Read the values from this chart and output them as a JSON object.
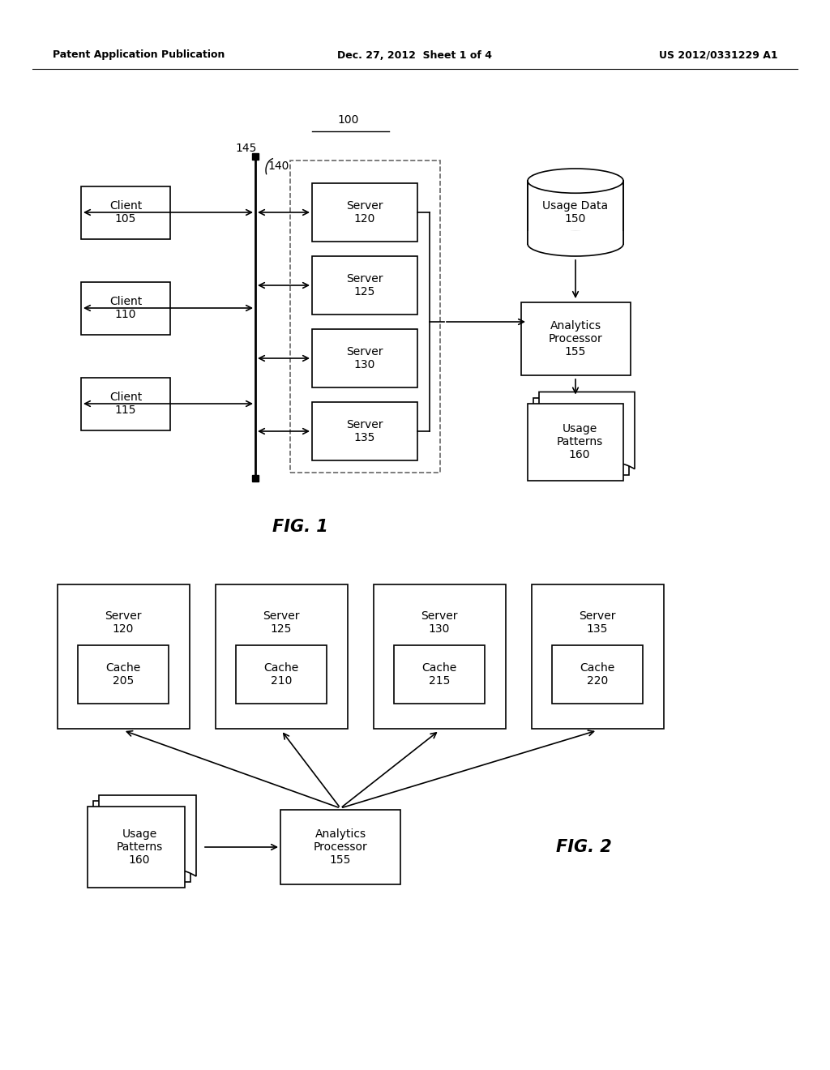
{
  "background_color": "#ffffff",
  "header_left": "Patent Application Publication",
  "header_center": "Dec. 27, 2012  Sheet 1 of 4",
  "header_right": "US 2012/0331229 A1",
  "fig1_label": "FIG. 1",
  "fig2_label": "FIG. 2"
}
